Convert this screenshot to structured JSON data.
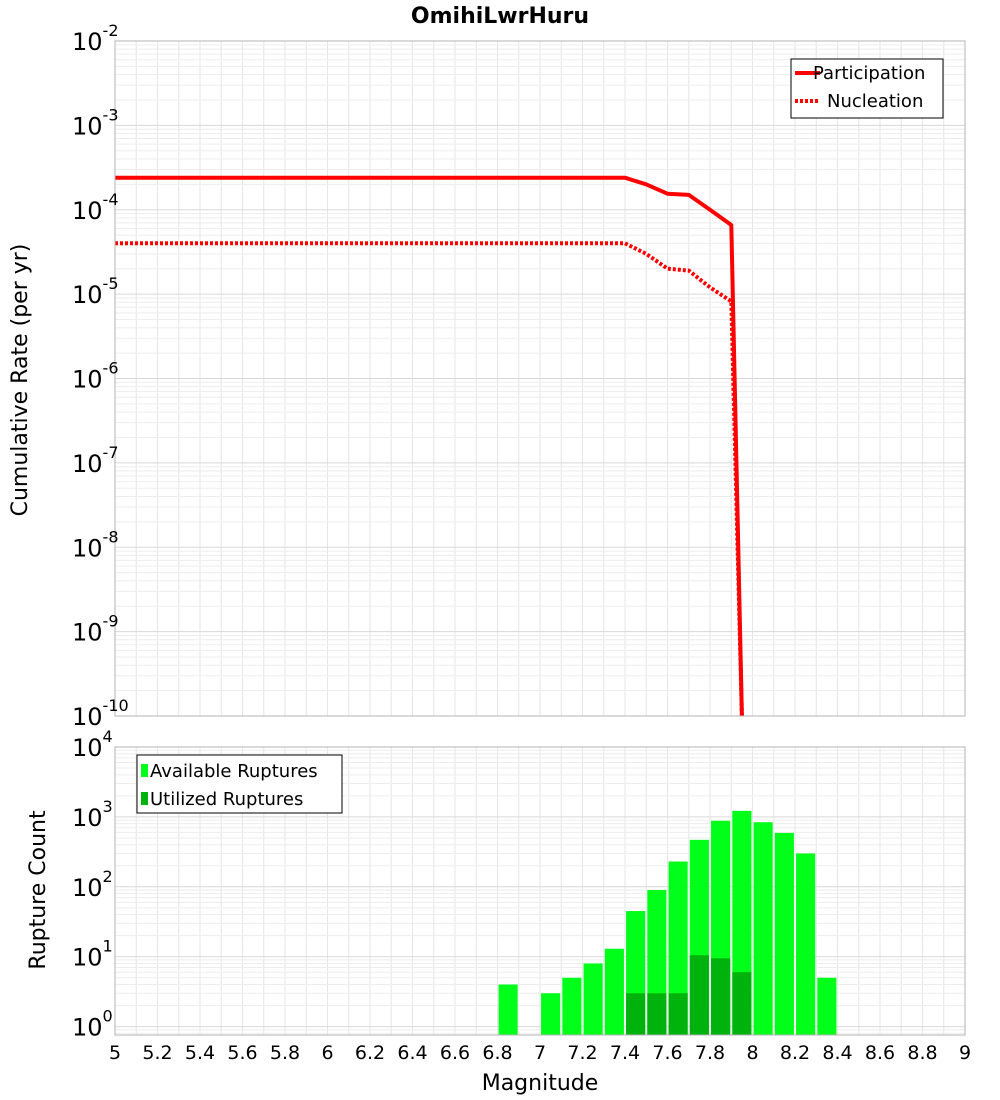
{
  "chart_data": [
    {
      "type": "line",
      "title": "OmihiLwrHuru",
      "xlabel": "",
      "ylabel": "Cumulative Rate (per yr)",
      "xlim": [
        5,
        9
      ],
      "ylim_log10": [
        -10,
        -2
      ],
      "yscale": "log",
      "ytick_base": "10",
      "ytick_exponents": [
        "-2",
        "-3",
        "-4",
        "-5",
        "-6",
        "-7",
        "-8",
        "-9",
        "-10"
      ],
      "legend_position": "top-right",
      "series": [
        {
          "name": "Participation",
          "style": "solid",
          "color": "#ff0000",
          "x": [
            5.0,
            7.4,
            7.5,
            7.6,
            7.7,
            7.8,
            7.9,
            7.95
          ],
          "y": [
            0.00024,
            0.00024,
            0.0002,
            0.000155,
            0.00015,
            0.0001,
            6.6e-05,
            1e-10
          ]
        },
        {
          "name": "Nucleation",
          "style": "dotted",
          "color": "#ff0000",
          "x": [
            5.0,
            7.4,
            7.5,
            7.6,
            7.7,
            7.8,
            7.9,
            7.95
          ],
          "y": [
            4e-05,
            4e-05,
            3e-05,
            2e-05,
            1.9e-05,
            1.2e-05,
            8.2e-06,
            1e-10
          ]
        }
      ]
    },
    {
      "type": "bar",
      "title": "",
      "xlabel": "Magnitude",
      "ylabel": "Rupture Count",
      "xlim": [
        5,
        9
      ],
      "ylim_log10": [
        -0.12,
        4
      ],
      "yscale": "log",
      "ytick_base": "10",
      "ytick_exponents": [
        "4",
        "3",
        "2",
        "1",
        "0"
      ],
      "xticks": [
        "5",
        "5.2",
        "5.4",
        "5.6",
        "5.8",
        "6",
        "6.2",
        "6.4",
        "6.6",
        "6.8",
        "7",
        "7.2",
        "7.4",
        "7.6",
        "7.8",
        "8",
        "8.2",
        "8.4",
        "8.6",
        "8.8",
        "9"
      ],
      "bar_width": 0.09,
      "legend_position": "top-left",
      "series": [
        {
          "name": "Available Ruptures",
          "color": "#00ff19",
          "x": [
            6.85,
            7.05,
            7.15,
            7.25,
            7.35,
            7.45,
            7.55,
            7.65,
            7.75,
            7.85,
            7.95,
            8.05,
            8.15,
            8.25,
            8.35
          ],
          "values": [
            4,
            3,
            5,
            8,
            13,
            45,
            90,
            230,
            470,
            880,
            1220,
            840,
            590,
            300,
            5
          ]
        },
        {
          "name": "Utilized Ruptures",
          "color": "#00b20c",
          "x": [
            7.45,
            7.55,
            7.65,
            7.75,
            7.85,
            7.95
          ],
          "values": [
            3,
            3,
            3,
            10.5,
            9.5,
            6
          ]
        }
      ]
    }
  ]
}
